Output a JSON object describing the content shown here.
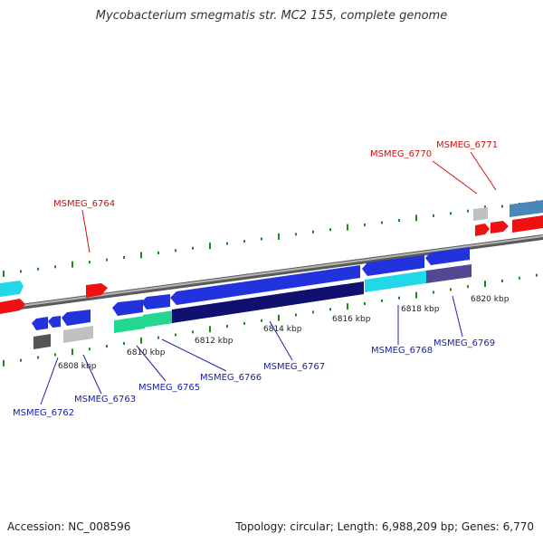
{
  "title": "Mycobacterium smegmatis str. MC2 155, complete genome",
  "footer": {
    "accession": "Accession: NC_008596",
    "summary": "Topology: circular; Length: 6,988,209 bp; Genes: 6,770"
  },
  "colors": {
    "backbone": "#8c8c8c",
    "tick_green": "#1a8a1a",
    "forward_blue": "#2233dd",
    "dark_navy": "#101070",
    "cyan": "#22d8e8",
    "teal_green": "#22d890",
    "purple": "#504890",
    "red": "#ee1111",
    "gray_light": "#c0c0c0",
    "gray_dark": "#555555",
    "steel_blue": "#4a86b8",
    "label_red": "#cc1111",
    "label_blue": "#1a22aa"
  },
  "scale_labels": [
    "6808 kbp",
    "6810 kbp",
    "6812 kbp",
    "6814 kbp",
    "6816 kbp",
    "6818 kbp",
    "6820 kbp"
  ],
  "gene_labels": [
    {
      "text": "MSMEG_6764",
      "color": "red"
    },
    {
      "text": "MSMEG_6770",
      "color": "red"
    },
    {
      "text": "MSMEG_6771",
      "color": "red"
    },
    {
      "text": "MSMEG_6762",
      "color": "blue"
    },
    {
      "text": "MSMEG_6763",
      "color": "blue"
    },
    {
      "text": "MSMEG_6765",
      "color": "blue"
    },
    {
      "text": "MSMEG_6766",
      "color": "blue"
    },
    {
      "text": "MSMEG_6767",
      "color": "blue"
    },
    {
      "text": "MSMEG_6768",
      "color": "blue"
    },
    {
      "text": "MSMEG_6769",
      "color": "blue"
    }
  ]
}
